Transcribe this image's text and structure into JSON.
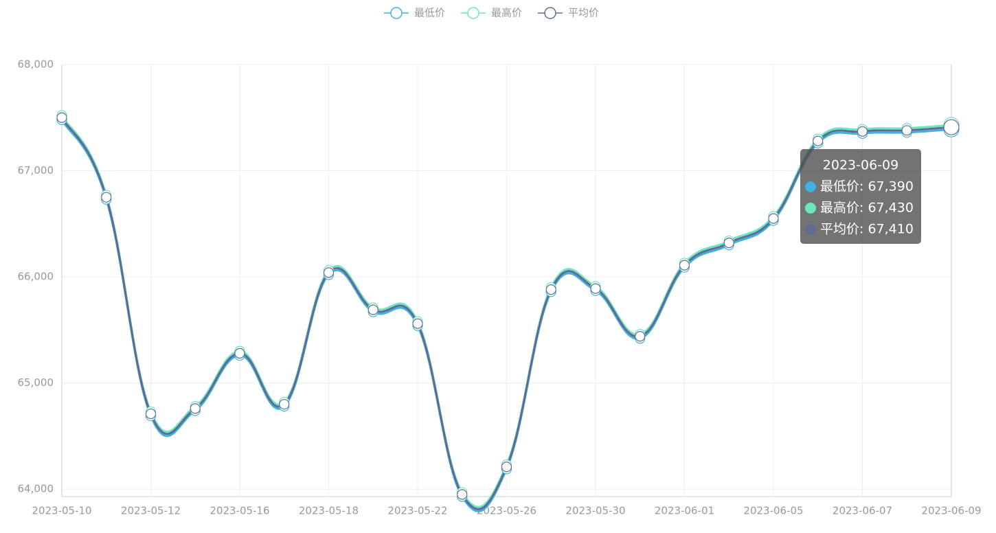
{
  "chart_data": {
    "type": "line",
    "smooth": true,
    "grid": true,
    "categories": [
      "2023-05-10",
      null,
      "2023-05-12",
      null,
      "2023-05-16",
      null,
      "2023-05-18",
      null,
      "2023-05-22",
      null,
      "2023-05-26",
      null,
      "2023-05-30",
      null,
      "2023-06-01",
      null,
      "2023-06-05",
      null,
      "2023-06-07",
      null,
      "2023-06-09"
    ],
    "series": [
      {
        "name": "最低价",
        "color": "#3fb1e3",
        "values": [
          67480,
          66730,
          64690,
          64740,
          65260,
          64780,
          66020,
          65670,
          65540,
          63930,
          64190,
          65860,
          65870,
          65420,
          66090,
          66300,
          66530,
          67260,
          67350,
          67360,
          67390
        ]
      },
      {
        "name": "最高价",
        "color": "#6be6c1",
        "values": [
          67520,
          66770,
          64730,
          64780,
          65300,
          64820,
          66060,
          65710,
          65580,
          63970,
          64230,
          65900,
          65910,
          65460,
          66130,
          66340,
          66570,
          67300,
          67390,
          67400,
          67430
        ]
      },
      {
        "name": "平均价",
        "color": "#626c91",
        "values": [
          67500,
          66750,
          64710,
          64760,
          65280,
          64800,
          66040,
          65690,
          65560,
          63950,
          64210,
          65880,
          65890,
          65440,
          66110,
          66320,
          66550,
          67280,
          67370,
          67380,
          67410
        ]
      }
    ],
    "ylim": [
      63930,
      68000
    ],
    "yticks": [
      {
        "value": 64000,
        "label": "64,000"
      },
      {
        "value": 65000,
        "label": "65,000"
      },
      {
        "value": 66000,
        "label": "66,000"
      },
      {
        "value": 67000,
        "label": "67,000"
      },
      {
        "value": 68000,
        "label": "68,000"
      }
    ],
    "tooltip": {
      "title": "2023-06-09",
      "rows": [
        "最低价: 67,390",
        "最高价: 67,430",
        "平均价: 67,410"
      ]
    }
  }
}
